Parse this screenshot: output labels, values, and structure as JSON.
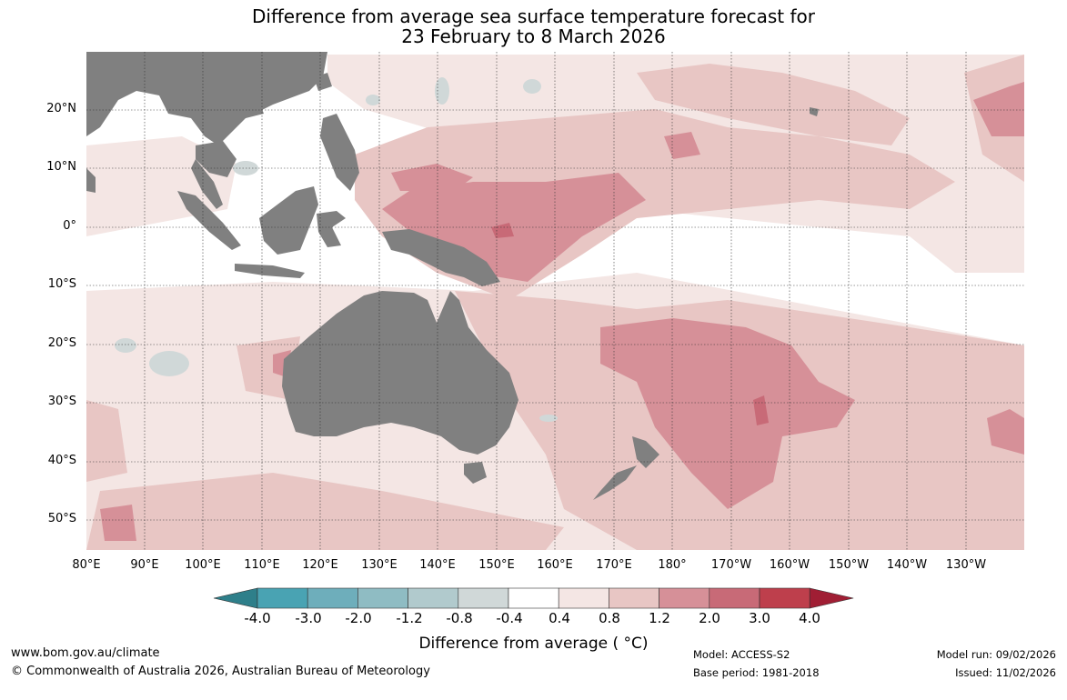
{
  "title_line1": "Difference from average sea surface temperature forecast for",
  "title_line2": "23 February to 8 March 2026",
  "longitude_labels": [
    "80°E",
    "90°E",
    "100°E",
    "110°E",
    "120°E",
    "130°E",
    "140°E",
    "150°E",
    "160°E",
    "170°E",
    "180°",
    "170°W",
    "160°W",
    "150°W",
    "140°W",
    "130°W"
  ],
  "latitude_labels": [
    "20°N",
    "10°N",
    "0°",
    "10°S",
    "20°S",
    "30°S",
    "40°S",
    "50°S"
  ],
  "colorbar": {
    "ticks": [
      "-4.0",
      "-3.0",
      "-2.0",
      "-1.2",
      "-0.8",
      "-0.4",
      "0.4",
      "0.8",
      "1.2",
      "2.0",
      "3.0",
      "4.0"
    ],
    "colors": [
      "#2e7f8a",
      "#49a3b3",
      "#6eaebb",
      "#8fbcc3",
      "#b1cacd",
      "#d0d8d8",
      "#ffffff",
      "#f4e6e4",
      "#e8c6c4",
      "#d69098",
      "#c86a77",
      "#be3f4c",
      "#a01e34"
    ],
    "label": "Difference from average ( °C)"
  },
  "colors": {
    "land": "#808080",
    "warm_light": "#f4e6e4",
    "warm_mid": "#e8c6c4",
    "warm_strong": "#d69098",
    "warm_deep": "#c86a77",
    "cool_light": "#d0d8d8"
  },
  "footer": {
    "url": "www.bom.gov.au/climate",
    "copyright": "© Commonwealth of Australia 2026, Australian Bureau of Meteorology",
    "model": "Model: ACCESS-S2",
    "base_period": "Base period: 1981-2018",
    "model_run": "Model run: 09/02/2026",
    "issued": "Issued: 11/02/2026"
  }
}
